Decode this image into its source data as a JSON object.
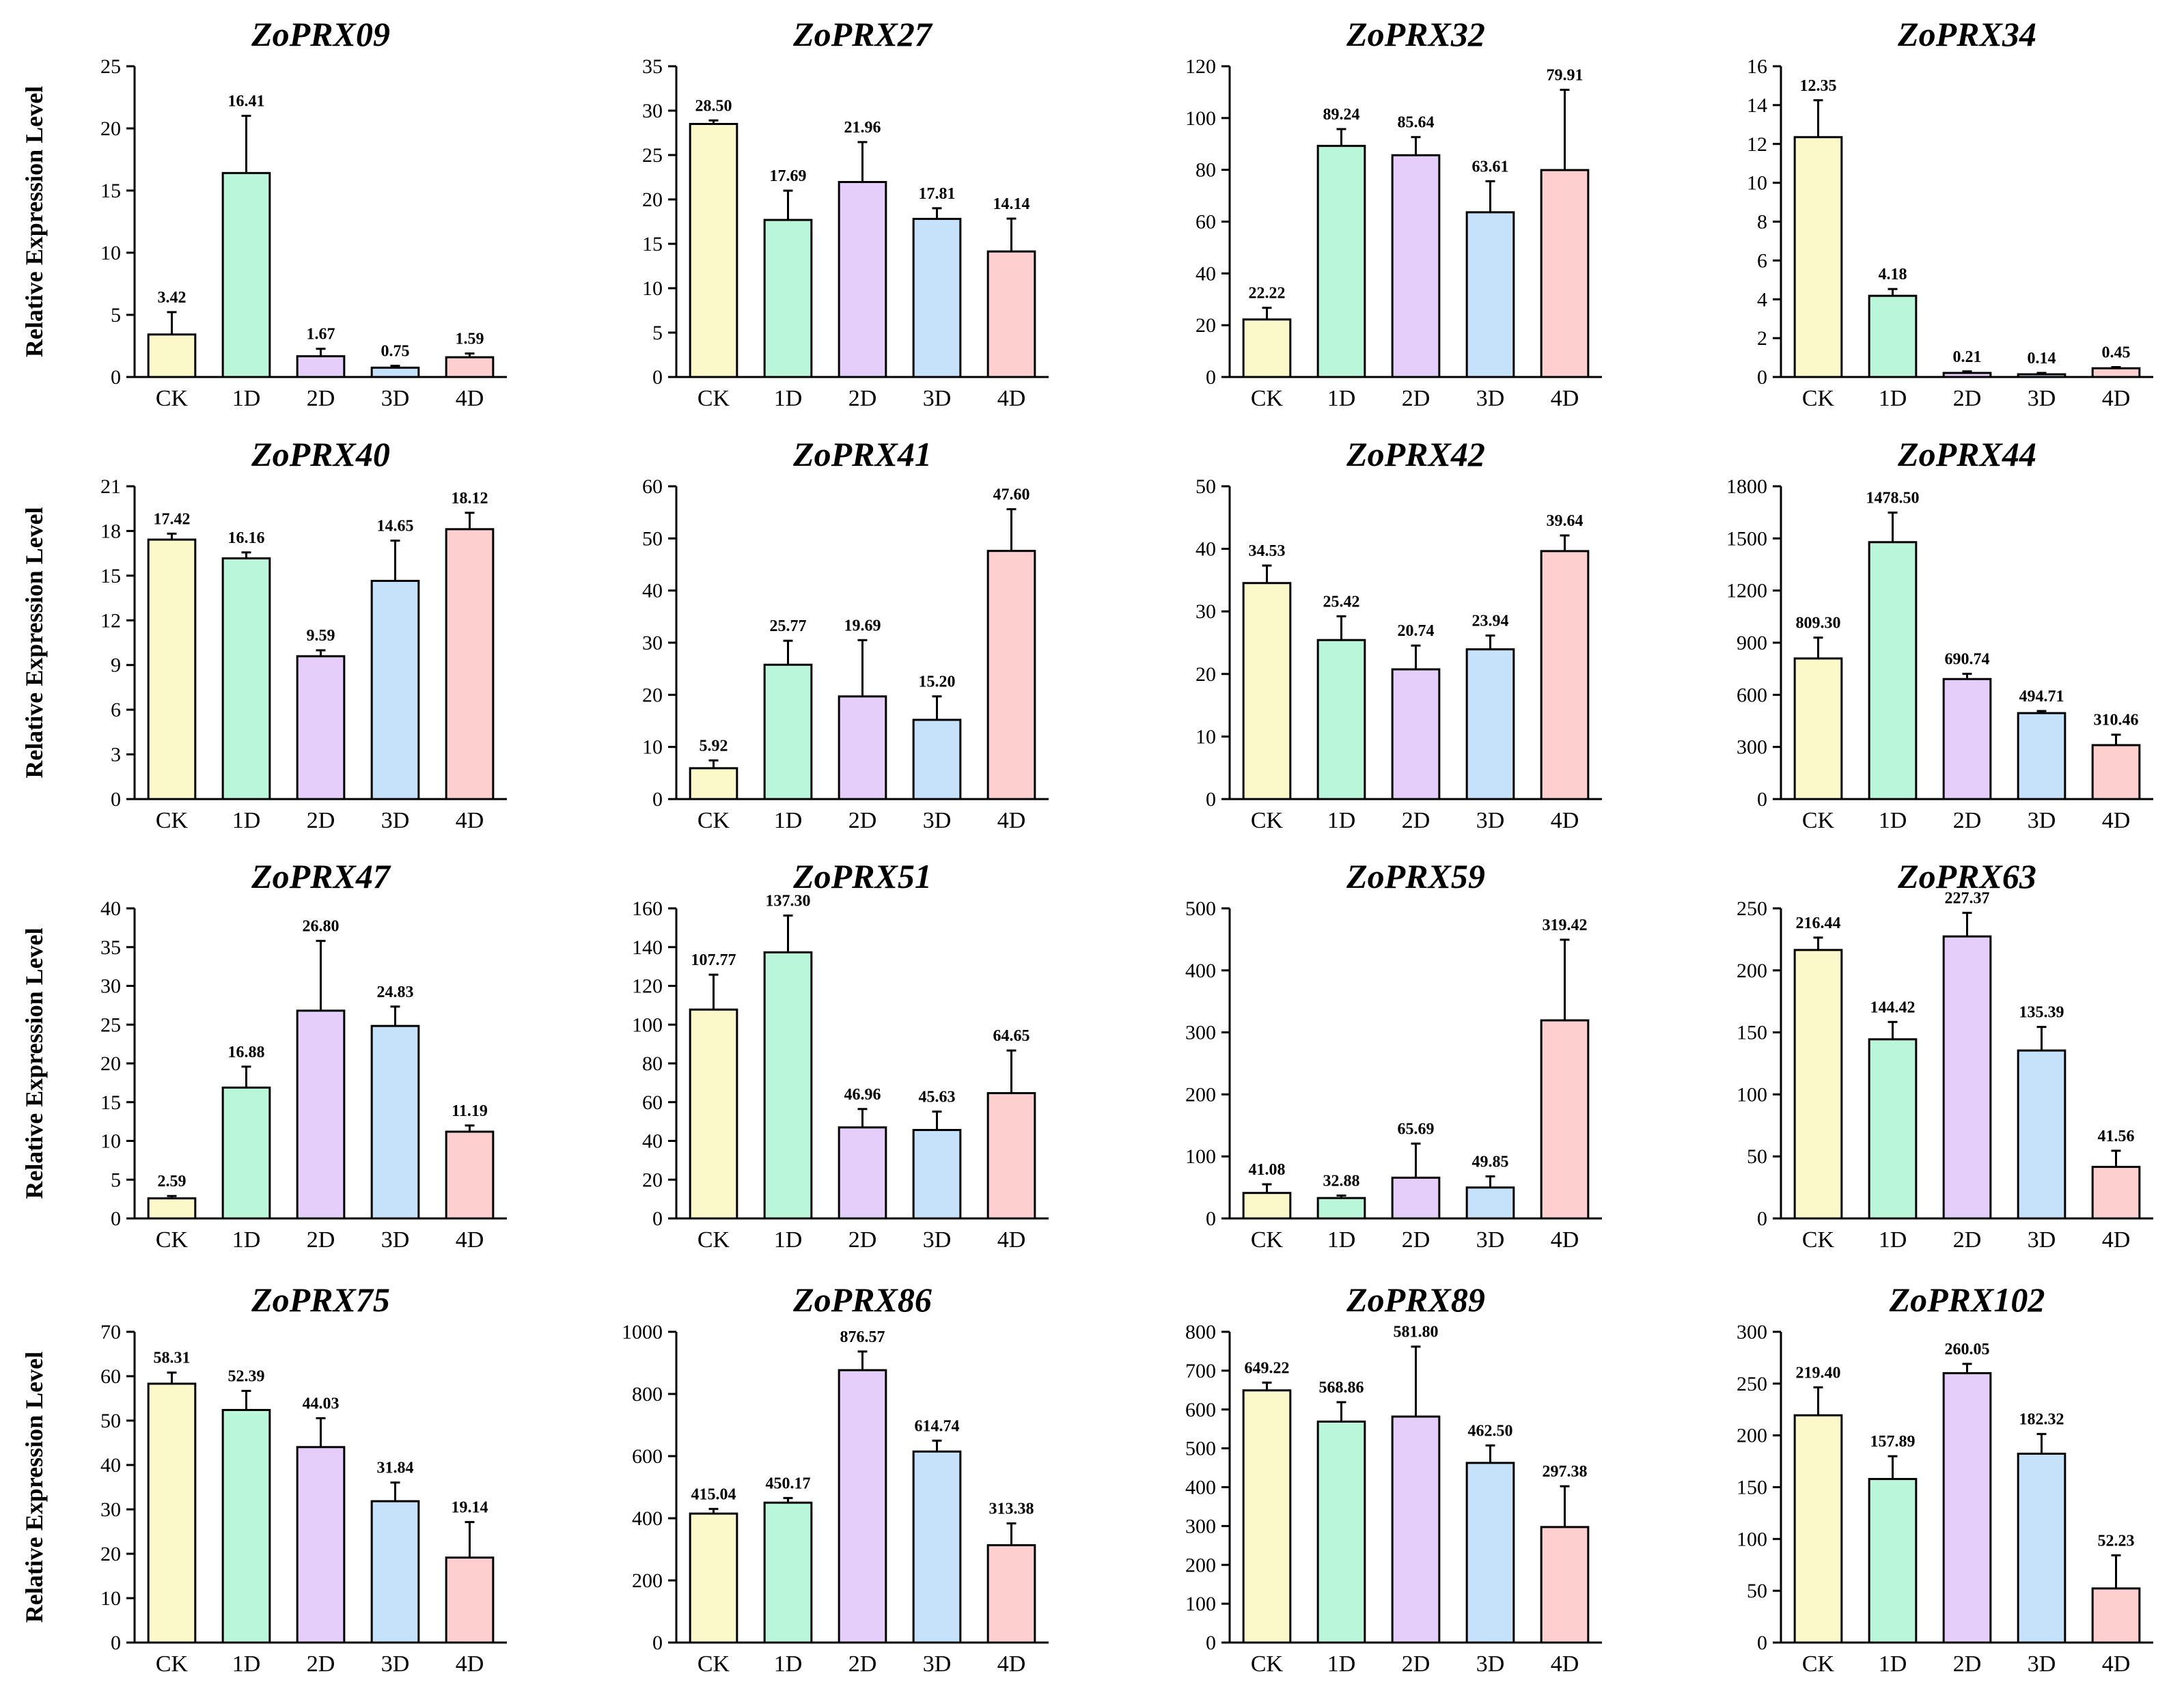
{
  "figure": {
    "y_axis_label": "Relative Expression Level",
    "colors": {
      "CK": "#fbf8c9",
      "1D": "#b9f6da",
      "2D": "#e6cefa",
      "3D": "#c6e2fb",
      "4D": "#fdcfcf",
      "stroke": "#000000"
    }
  },
  "chart_data": [
    {
      "type": "bar",
      "title": "ZoPRX09",
      "categories": [
        "CK",
        "1D",
        "2D",
        "3D",
        "4D"
      ],
      "values": [
        3.42,
        16.41,
        1.67,
        0.75,
        1.59
      ],
      "labels": [
        "3.42",
        "16.41",
        "1.67",
        "0.75",
        "1.59"
      ],
      "error": [
        1.8,
        4.6,
        0.6,
        0.15,
        0.3
      ],
      "ylim": [
        0,
        25
      ],
      "yticks": [
        0,
        5,
        10,
        15,
        20,
        25
      ],
      "ylabel": "Relative Expression Level"
    },
    {
      "type": "bar",
      "title": "ZoPRX27",
      "categories": [
        "CK",
        "1D",
        "2D",
        "3D",
        "4D"
      ],
      "values": [
        28.5,
        17.69,
        21.96,
        17.81,
        14.14
      ],
      "labels": [
        "28.50",
        "17.69",
        "21.96",
        "17.81",
        "14.14"
      ],
      "error": [
        0.4,
        3.3,
        4.5,
        1.2,
        3.7
      ],
      "ylim": [
        0,
        35
      ],
      "yticks": [
        0,
        5,
        10,
        15,
        20,
        25,
        30,
        35
      ],
      "ylabel": ""
    },
    {
      "type": "bar",
      "title": "ZoPRX32",
      "categories": [
        "CK",
        "1D",
        "2D",
        "3D",
        "4D"
      ],
      "values": [
        22.22,
        89.24,
        85.64,
        63.61,
        79.91
      ],
      "labels": [
        "22.22",
        "89.24",
        "85.64",
        "63.61",
        "79.91"
      ],
      "error": [
        4.5,
        6.5,
        7.0,
        12.0,
        31.0
      ],
      "ylim": [
        0,
        120
      ],
      "yticks": [
        0,
        20,
        40,
        60,
        80,
        100,
        120
      ],
      "ylabel": ""
    },
    {
      "type": "bar",
      "title": "ZoPRX34",
      "categories": [
        "CK",
        "1D",
        "2D",
        "3D",
        "4D"
      ],
      "values": [
        12.35,
        4.18,
        0.21,
        0.14,
        0.45
      ],
      "labels": [
        "12.35",
        "4.18",
        "0.21",
        "0.14",
        "0.45"
      ],
      "error": [
        1.9,
        0.35,
        0.08,
        0.07,
        0.06
      ],
      "ylim": [
        0,
        16
      ],
      "yticks": [
        0,
        2,
        4,
        6,
        8,
        10,
        12,
        14,
        16
      ],
      "ylabel": ""
    },
    {
      "type": "bar",
      "title": "ZoPRX40",
      "categories": [
        "CK",
        "1D",
        "2D",
        "3D",
        "4D"
      ],
      "values": [
        17.42,
        16.16,
        9.59,
        14.65,
        18.12
      ],
      "labels": [
        "17.42",
        "16.16",
        "9.59",
        "14.65",
        "18.12"
      ],
      "error": [
        0.4,
        0.4,
        0.4,
        2.7,
        1.1
      ],
      "ylim": [
        0,
        21
      ],
      "yticks": [
        0,
        3,
        6,
        9,
        12,
        15,
        18,
        21
      ],
      "ylabel": "Relative Expression Level"
    },
    {
      "type": "bar",
      "title": "ZoPRX41",
      "categories": [
        "CK",
        "1D",
        "2D",
        "3D",
        "4D"
      ],
      "values": [
        5.92,
        25.77,
        19.69,
        15.2,
        47.6
      ],
      "labels": [
        "5.92",
        "25.77",
        "19.69",
        "15.20",
        "47.60"
      ],
      "error": [
        1.5,
        4.6,
        10.8,
        4.5,
        8.0
      ],
      "ylim": [
        0,
        60
      ],
      "yticks": [
        0,
        10,
        20,
        30,
        40,
        50,
        60
      ],
      "ylabel": ""
    },
    {
      "type": "bar",
      "title": "ZoPRX42",
      "categories": [
        "CK",
        "1D",
        "2D",
        "3D",
        "4D"
      ],
      "values": [
        34.53,
        25.42,
        20.74,
        23.94,
        39.64
      ],
      "labels": [
        "34.53",
        "25.42",
        "20.74",
        "23.94",
        "39.64"
      ],
      "error": [
        2.8,
        3.8,
        3.8,
        2.2,
        2.5
      ],
      "ylim": [
        0,
        50
      ],
      "yticks": [
        0,
        10,
        20,
        30,
        40,
        50
      ],
      "ylabel": ""
    },
    {
      "type": "bar",
      "title": "ZoPRX44",
      "categories": [
        "CK",
        "1D",
        "2D",
        "3D",
        "4D"
      ],
      "values": [
        809.3,
        1478.5,
        690.74,
        494.71,
        310.46
      ],
      "labels": [
        "809.30",
        "1478.50",
        "690.74",
        "494.71",
        "310.46"
      ],
      "error": [
        120,
        170,
        30,
        12,
        60
      ],
      "ylim": [
        0,
        1800
      ],
      "yticks": [
        0,
        300,
        600,
        900,
        1200,
        1500,
        1800
      ],
      "ylabel": ""
    },
    {
      "type": "bar",
      "title": "ZoPRX47",
      "categories": [
        "CK",
        "1D",
        "2D",
        "3D",
        "4D"
      ],
      "values": [
        2.59,
        16.88,
        26.8,
        24.83,
        11.19
      ],
      "labels": [
        "2.59",
        "16.88",
        "26.80",
        "24.83",
        "11.19"
      ],
      "error": [
        0.3,
        2.7,
        9.0,
        2.5,
        0.8
      ],
      "ylim": [
        0,
        40
      ],
      "yticks": [
        0,
        5,
        10,
        15,
        20,
        25,
        30,
        35,
        40
      ],
      "ylabel": "Relative Expression Level"
    },
    {
      "type": "bar",
      "title": "ZoPRX51",
      "categories": [
        "CK",
        "1D",
        "2D",
        "3D",
        "4D"
      ],
      "values": [
        107.77,
        137.3,
        46.96,
        45.63,
        64.65
      ],
      "labels": [
        "107.77",
        "137.30",
        "46.96",
        "45.63",
        "64.65"
      ],
      "error": [
        18,
        19,
        9.5,
        9.5,
        22
      ],
      "ylim": [
        0,
        160
      ],
      "yticks": [
        0,
        20,
        40,
        60,
        80,
        100,
        120,
        140,
        160
      ],
      "ylabel": ""
    },
    {
      "type": "bar",
      "title": "ZoPRX59",
      "categories": [
        "CK",
        "1D",
        "2D",
        "3D",
        "4D"
      ],
      "values": [
        41.08,
        32.88,
        65.69,
        49.85,
        319.42
      ],
      "labels": [
        "41.08",
        "32.88",
        "65.69",
        "49.85",
        "319.42"
      ],
      "error": [
        14,
        4,
        55,
        18,
        130
      ],
      "ylim": [
        0,
        500
      ],
      "yticks": [
        0,
        100,
        200,
        300,
        400,
        500
      ],
      "ylabel": ""
    },
    {
      "type": "bar",
      "title": "ZoPRX63",
      "categories": [
        "CK",
        "1D",
        "2D",
        "3D",
        "4D"
      ],
      "values": [
        216.44,
        144.42,
        227.37,
        135.39,
        41.56
      ],
      "labels": [
        "216.44",
        "144.42",
        "227.37",
        "135.39",
        "41.56"
      ],
      "error": [
        10,
        14,
        19,
        19,
        13
      ],
      "ylim": [
        0,
        250
      ],
      "yticks": [
        0,
        50,
        100,
        150,
        200,
        250
      ],
      "ylabel": ""
    },
    {
      "type": "bar",
      "title": "ZoPRX75",
      "categories": [
        "CK",
        "1D",
        "2D",
        "3D",
        "4D"
      ],
      "values": [
        58.31,
        52.39,
        44.03,
        31.84,
        19.14
      ],
      "labels": [
        "58.31",
        "52.39",
        "44.03",
        "31.84",
        "19.14"
      ],
      "error": [
        2.5,
        4.3,
        6.5,
        4.2,
        8.0
      ],
      "ylim": [
        0,
        70
      ],
      "yticks": [
        0,
        10,
        20,
        30,
        40,
        50,
        60,
        70
      ],
      "ylabel": "Relative Expression Level"
    },
    {
      "type": "bar",
      "title": "ZoPRX86",
      "categories": [
        "CK",
        "1D",
        "2D",
        "3D",
        "4D"
      ],
      "values": [
        415.04,
        450.17,
        876.57,
        614.74,
        313.38
      ],
      "labels": [
        "415.04",
        "450.17",
        "876.57",
        "614.74",
        "313.38"
      ],
      "error": [
        15,
        15,
        60,
        35,
        70
      ],
      "ylim": [
        0,
        1000
      ],
      "yticks": [
        0,
        200,
        400,
        600,
        800,
        1000
      ],
      "ylabel": ""
    },
    {
      "type": "bar",
      "title": "ZoPRX89",
      "categories": [
        "CK",
        "1D",
        "2D",
        "3D",
        "4D"
      ],
      "values": [
        649.22,
        568.86,
        581.8,
        462.5,
        297.38
      ],
      "labels": [
        "649.22",
        "568.86",
        "581.80",
        "462.50",
        "297.38"
      ],
      "error": [
        20,
        50,
        180,
        45,
        105
      ],
      "ylim": [
        0,
        800
      ],
      "yticks": [
        0,
        100,
        200,
        300,
        400,
        500,
        600,
        700,
        800
      ],
      "ylabel": ""
    },
    {
      "type": "bar",
      "title": "ZoPRX102",
      "categories": [
        "CK",
        "1D",
        "2D",
        "3D",
        "4D"
      ],
      "values": [
        219.4,
        157.89,
        260.05,
        182.32,
        52.23
      ],
      "labels": [
        "219.40",
        "157.89",
        "260.05",
        "182.32",
        "52.23"
      ],
      "error": [
        27,
        22,
        9,
        19,
        32
      ],
      "ylim": [
        0,
        300
      ],
      "yticks": [
        0,
        50,
        100,
        150,
        200,
        250,
        300
      ],
      "ylabel": ""
    }
  ]
}
